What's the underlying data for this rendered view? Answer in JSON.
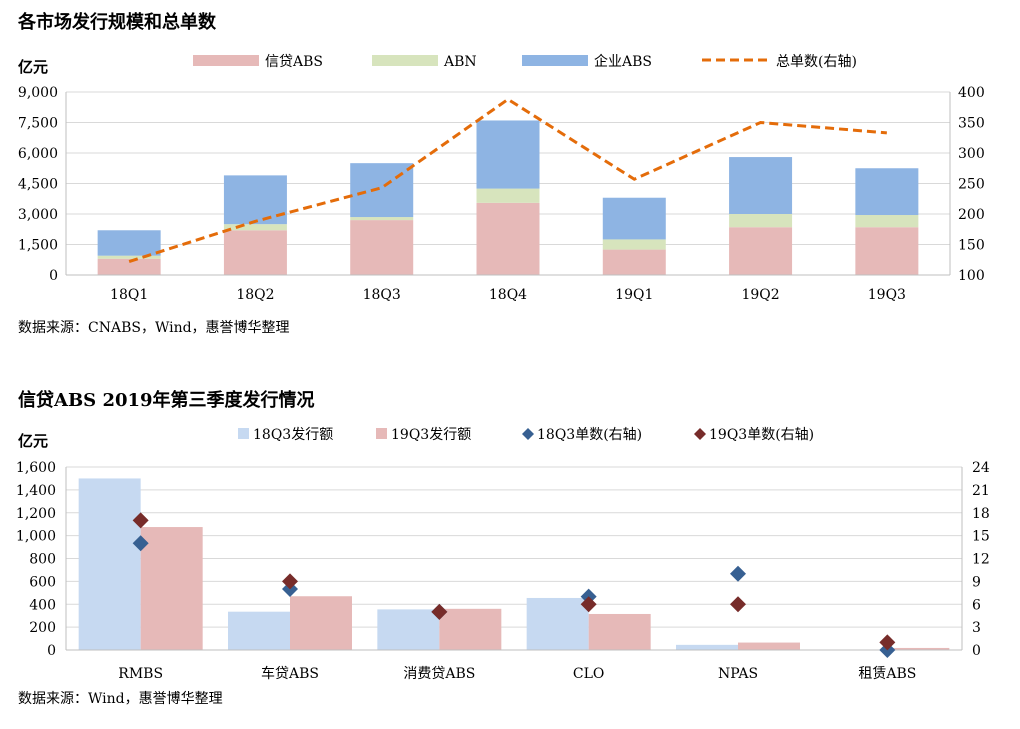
{
  "chart_data": [
    {
      "type": "bar",
      "title": "各市场发行规模和总单数",
      "ylabel": "亿元",
      "categories": [
        "18Q1",
        "18Q2",
        "18Q3",
        "18Q4",
        "19Q1",
        "19Q2",
        "19Q3"
      ],
      "stacked": true,
      "series": [
        {
          "name": "信贷ABS",
          "values": [
            800,
            2200,
            2700,
            3550,
            1250,
            2350,
            2350
          ],
          "color": "#e6b9b8"
        },
        {
          "name": "ABN",
          "values": [
            150,
            300,
            150,
            700,
            500,
            650,
            600
          ],
          "color": "#d7e4bd"
        },
        {
          "name": "企业ABS",
          "values": [
            1250,
            2400,
            2650,
            3350,
            2050,
            2800,
            2300
          ],
          "color": "#8eb4e3"
        }
      ],
      "line_series": {
        "name": "总单数(右轴)",
        "values": [
          122,
          188,
          243,
          388,
          257,
          350,
          333
        ],
        "color": "#e46c0a",
        "style": "dashed",
        "axis": "right"
      },
      "ylim": [
        0,
        9000
      ],
      "yticks": [
        "9,000",
        "7,500",
        "6,000",
        "4,500",
        "3,000",
        "1,500",
        "0"
      ],
      "y2lim": [
        100,
        400
      ],
      "y2ticks": [
        "400",
        "350",
        "300",
        "250",
        "200",
        "150",
        "100"
      ],
      "source": "数据来源：CNABS，Wind，惠誉博华整理",
      "legend_position": "top"
    },
    {
      "type": "bar",
      "title": "信贷ABS 2019年第三季度发行情况",
      "ylabel": "亿元",
      "categories": [
        "RMBS",
        "车贷ABS",
        "消费贷ABS",
        "CLO",
        "NPAS",
        "租赁ABS"
      ],
      "series": [
        {
          "name": "18Q3发行额",
          "values": [
            1500,
            335,
            355,
            455,
            45,
            0
          ],
          "color": "#c6d9f1"
        },
        {
          "name": "19Q3发行额",
          "values": [
            1075,
            470,
            360,
            315,
            65,
            18
          ],
          "color": "#e6b9b8"
        }
      ],
      "points": [
        {
          "name": "18Q3单数(右轴)",
          "values": [
            14,
            8,
            5,
            7,
            10,
            0
          ],
          "color": "#376092",
          "axis": "right"
        },
        {
          "name": "19Q3单数(右轴)",
          "values": [
            17,
            9,
            5,
            6,
            6,
            1
          ],
          "color": "#772c2a",
          "axis": "right"
        }
      ],
      "ylim": [
        0,
        1600
      ],
      "yticks": [
        "1,600",
        "1,400",
        "1,200",
        "1,000",
        "800",
        "600",
        "400",
        "200",
        "0"
      ],
      "y2lim": [
        0,
        24
      ],
      "y2ticks": [
        "24",
        "21",
        "18",
        "15",
        "12",
        "9",
        "6",
        "3",
        "0"
      ],
      "source": "数据来源：Wind，惠誉博华整理",
      "legend_position": "top"
    }
  ]
}
